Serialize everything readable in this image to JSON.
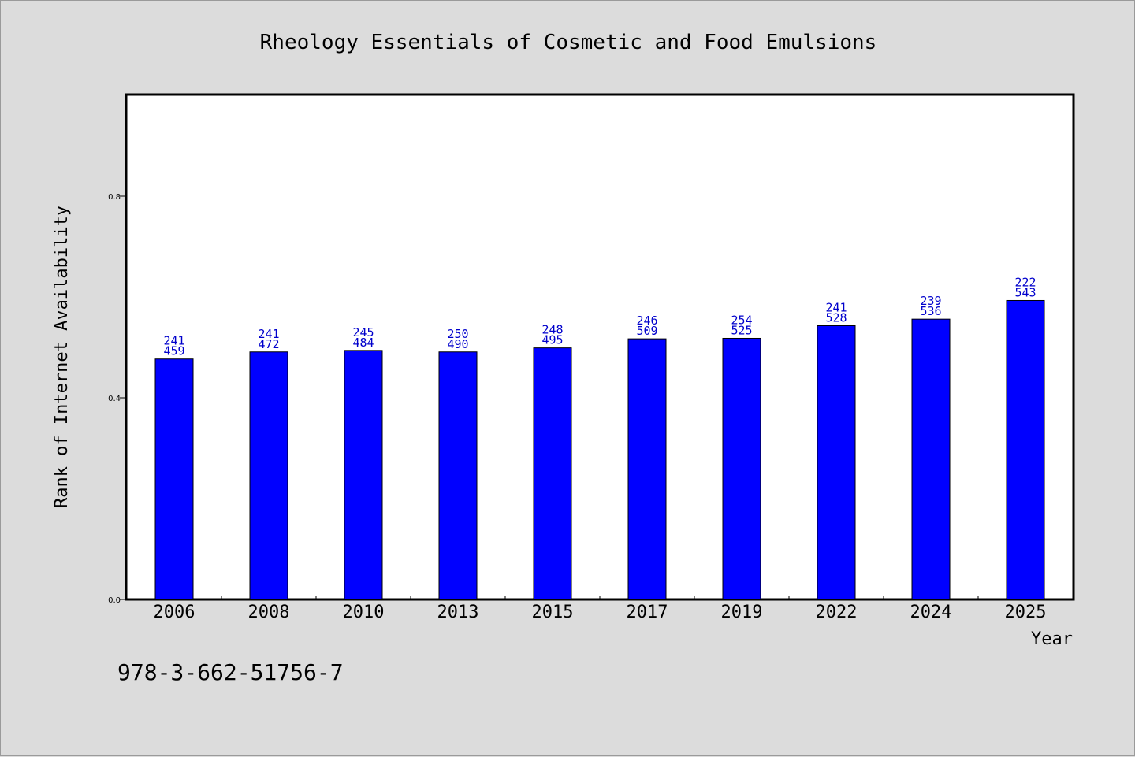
{
  "chart_data": {
    "type": "bar",
    "title": "Rheology Essentials of Cosmetic and Food Emulsions",
    "xlabel": "Year",
    "ylabel": "Rank of Internet Availability",
    "categories": [
      "2006",
      "2008",
      "2010",
      "2013",
      "2015",
      "2017",
      "2019",
      "2022",
      "2024",
      "2025"
    ],
    "values": [
      0.477,
      0.491,
      0.494,
      0.491,
      0.499,
      0.517,
      0.518,
      0.543,
      0.556,
      0.593
    ],
    "data_labels": [
      [
        "241",
        "459"
      ],
      [
        "241",
        "472"
      ],
      [
        "245",
        "484"
      ],
      [
        "250",
        "490"
      ],
      [
        "248",
        "495"
      ],
      [
        "246",
        "509"
      ],
      [
        "254",
        "525"
      ],
      [
        "241",
        "528"
      ],
      [
        "239",
        "536"
      ],
      [
        "222",
        "543"
      ]
    ],
    "ylim": [
      0,
      1.0
    ],
    "yticks": [
      "0.0",
      "0.4",
      "0.8"
    ],
    "grid": false,
    "bar_color": "#0000ff",
    "label_color": "#0000cc"
  },
  "footnote": "978-3-662-51756-7"
}
